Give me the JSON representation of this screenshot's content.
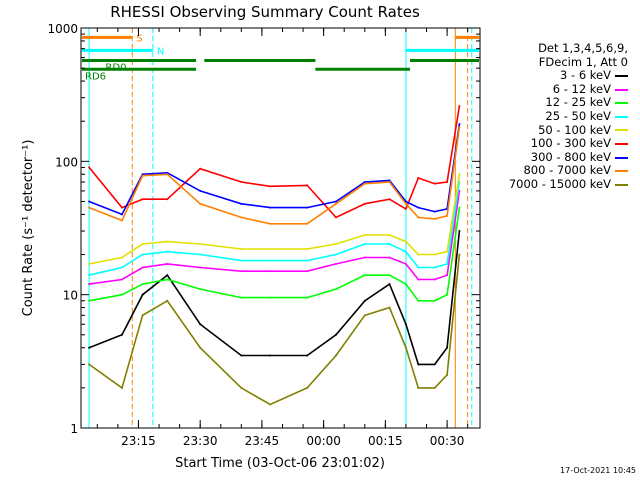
{
  "chart_data": {
    "type": "line",
    "title": "RHESSI Observing Summary Count Rates",
    "xlabel": "Start Time (03-Oct-06 23:01:02)",
    "ylabel": "Count Rate (s⁻¹ detector⁻¹)",
    "yscale": "log",
    "ylim": [
      1,
      1000
    ],
    "yticks": [
      "1",
      "10",
      "100",
      "1000"
    ],
    "xlim": [
      "23:01:02",
      "00:38:00"
    ],
    "xticks": [
      "23:15",
      "23:30",
      "23:45",
      "00:00",
      "00:15",
      "00:30"
    ],
    "legend_header": [
      "Det 1,3,4,5,6,9,",
      "FDecim 1, Att 0"
    ],
    "legend_position": "right",
    "series": [
      {
        "name": "3 - 6 keV",
        "color": "#000000",
        "x": [
          "23:03",
          "23:11",
          "23:16",
          "23:22",
          "23:30",
          "23:40",
          "23:47",
          "23:56",
          "00:03",
          "00:10",
          "00:16",
          "00:20",
          "00:23",
          "00:27",
          "00:30",
          "00:33"
        ],
        "values": [
          4,
          5,
          10,
          14,
          6,
          3.5,
          3.5,
          3.5,
          5,
          9,
          12,
          6,
          3,
          3,
          4,
          30
        ]
      },
      {
        "name": "6 - 12 keV",
        "color": "#ff00ff",
        "x": [
          "23:03",
          "23:11",
          "23:16",
          "23:22",
          "23:30",
          "23:40",
          "23:47",
          "23:56",
          "00:03",
          "00:10",
          "00:16",
          "00:20",
          "00:23",
          "00:27",
          "00:30",
          "00:33"
        ],
        "values": [
          12,
          13,
          16,
          17,
          16,
          15,
          15,
          15,
          17,
          19,
          19,
          17,
          13,
          13,
          14,
          60
        ]
      },
      {
        "name": "12 - 25 keV",
        "color": "#00ff00",
        "x": [
          "23:03",
          "23:11",
          "23:16",
          "23:22",
          "23:30",
          "23:40",
          "23:47",
          "23:56",
          "00:03",
          "00:10",
          "00:16",
          "00:20",
          "00:23",
          "00:27",
          "00:30",
          "00:33"
        ],
        "values": [
          9,
          10,
          12,
          13,
          11,
          9.5,
          9.5,
          9.5,
          11,
          14,
          14,
          12,
          9,
          9,
          10,
          45
        ]
      },
      {
        "name": "25 - 50 keV",
        "color": "#00ffff",
        "x": [
          "23:03",
          "23:11",
          "23:16",
          "23:22",
          "23:30",
          "23:40",
          "23:47",
          "23:56",
          "00:03",
          "00:10",
          "00:16",
          "00:20",
          "00:23",
          "00:27",
          "00:30",
          "00:33"
        ],
        "values": [
          14,
          16,
          20,
          21,
          20,
          18,
          18,
          18,
          20,
          24,
          24,
          21,
          16,
          16,
          17,
          70
        ]
      },
      {
        "name": "50 - 100 keV",
        "color": "#e0e000",
        "x": [
          "23:03",
          "23:11",
          "23:16",
          "23:22",
          "23:30",
          "23:40",
          "23:47",
          "23:56",
          "00:03",
          "00:10",
          "00:16",
          "00:20",
          "00:23",
          "00:27",
          "00:30",
          "00:33"
        ],
        "values": [
          17,
          19,
          24,
          25,
          24,
          22,
          22,
          22,
          24,
          28,
          28,
          25,
          20,
          20,
          21,
          80
        ]
      },
      {
        "name": "100 - 300 keV",
        "color": "#ff0000",
        "x": [
          "23:03",
          "23:11",
          "23:16",
          "23:22",
          "23:30",
          "23:40",
          "23:47",
          "23:56",
          "00:03",
          "00:10",
          "00:16",
          "00:20",
          "00:23",
          "00:27",
          "00:30",
          "00:33"
        ],
        "values": [
          90,
          45,
          52,
          52,
          88,
          70,
          65,
          66,
          38,
          48,
          52,
          44,
          75,
          68,
          70,
          260
        ]
      },
      {
        "name": "300 - 800 keV",
        "color": "#0000ff",
        "x": [
          "23:03",
          "23:11",
          "23:16",
          "23:22",
          "23:30",
          "23:40",
          "23:47",
          "23:56",
          "00:03",
          "00:10",
          "00:16",
          "00:20",
          "00:23",
          "00:27",
          "00:30",
          "00:33"
        ],
        "values": [
          50,
          40,
          80,
          82,
          60,
          48,
          45,
          45,
          50,
          70,
          72,
          50,
          45,
          42,
          44,
          190
        ]
      },
      {
        "name": "800 - 7000 keV",
        "color": "#ff8000",
        "x": [
          "23:03",
          "23:11",
          "23:16",
          "23:22",
          "23:30",
          "23:40",
          "23:47",
          "23:56",
          "00:03",
          "00:10",
          "00:16",
          "00:20",
          "00:23",
          "00:27",
          "00:30",
          "00:33"
        ],
        "values": [
          45,
          36,
          78,
          80,
          48,
          38,
          34,
          34,
          48,
          68,
          70,
          48,
          38,
          37,
          39,
          180
        ]
      },
      {
        "name": "7000 - 15000 keV",
        "color": "#808000",
        "x": [
          "23:03",
          "23:11",
          "23:16",
          "23:22",
          "23:30",
          "23:40",
          "23:47",
          "23:56",
          "00:03",
          "00:10",
          "00:16",
          "00:20",
          "00:23",
          "00:27",
          "00:30",
          "00:33"
        ],
        "values": [
          3,
          2,
          7,
          9,
          4,
          2,
          1.5,
          2,
          3.5,
          7,
          8,
          4,
          2,
          2,
          2.5,
          20
        ]
      }
    ],
    "flags": [
      {
        "label": "S",
        "color": "#ff8000",
        "level": 850,
        "intervals": [
          [
            "23:01:02",
            "23:13:30"
          ],
          [
            "00:32:00",
            "00:38:00"
          ]
        ],
        "label_at": "23:13:30"
      },
      {
        "label": "N",
        "color": "#00ffff",
        "level": 680,
        "intervals": [
          [
            "23:01:02",
            "23:18:30"
          ],
          [
            "00:20:00",
            "00:38:00"
          ]
        ],
        "label_at": "23:18:30"
      },
      {
        "label": "RD0",
        "color": "#008000",
        "level": 570,
        "intervals": [
          [
            "23:01:02",
            "23:29:00"
          ],
          [
            "23:31:00",
            "23:58:00"
          ],
          [
            "00:21:00",
            "00:38:00"
          ]
        ],
        "label_at": "23:06:00"
      },
      {
        "label": "RD6",
        "color": "#008000",
        "level": 490,
        "intervals": [
          [
            "23:01:02",
            "23:29:00"
          ],
          [
            "23:58:00",
            "00:21:00"
          ]
        ],
        "label_at": "23:01:02"
      }
    ],
    "vlines": [
      {
        "t": "23:03:00",
        "color": "#00ffff",
        "style": "solid"
      },
      {
        "t": "23:13:30",
        "color": "#ff8000",
        "style": "dashed"
      },
      {
        "t": "23:18:30",
        "color": "#00ffff",
        "style": "dashed"
      },
      {
        "t": "00:20:00",
        "color": "#00ffff",
        "style": "solid"
      },
      {
        "t": "00:32:00",
        "color": "#ff8000",
        "style": "solid"
      },
      {
        "t": "00:35:00",
        "color": "#ff8000",
        "style": "dashed"
      },
      {
        "t": "00:36:00",
        "color": "#00ffff",
        "style": "dashed"
      }
    ]
  },
  "legend": {
    "header": [
      "Det 1,3,4,5,6,9,",
      "FDecim 1, Att 0"
    ],
    "items": [
      {
        "label": "3 - 6 keV",
        "color": "#000000"
      },
      {
        "label": "6 - 12 keV",
        "color": "#ff00ff"
      },
      {
        "label": "12 - 25 keV",
        "color": "#00ff00"
      },
      {
        "label": "25 - 50 keV",
        "color": "#00ffff"
      },
      {
        "label": "50 - 100 keV",
        "color": "#e0e000"
      },
      {
        "label": "100 - 300 keV",
        "color": "#ff0000"
      },
      {
        "label": "300 - 800 keV",
        "color": "#0000ff"
      },
      {
        "label": "800 - 7000 keV",
        "color": "#ff8000"
      },
      {
        "label": "7000 - 15000 keV",
        "color": "#808000"
      }
    ]
  },
  "timestamp": "17-Oct-2021 10:45"
}
